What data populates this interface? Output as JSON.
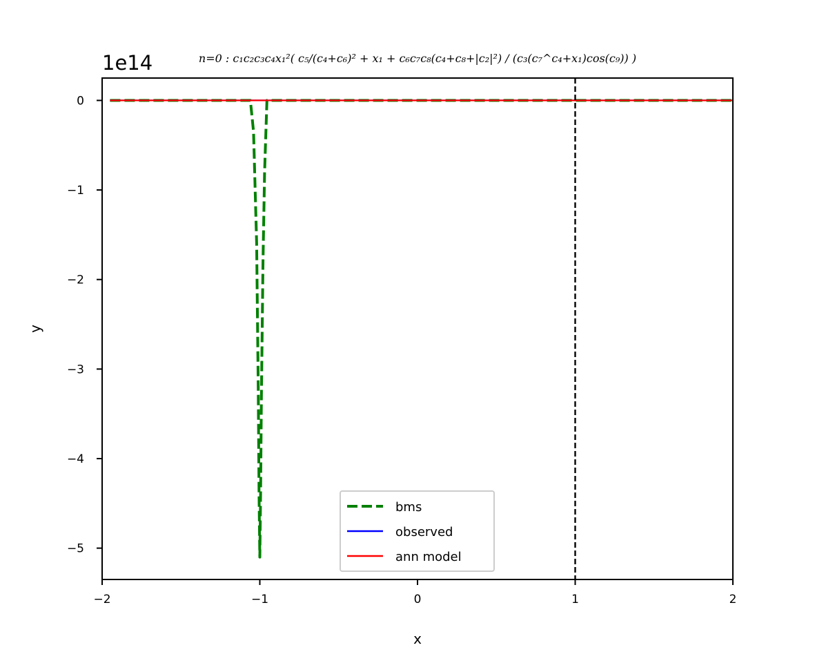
{
  "chart_data": {
    "type": "line",
    "title": "n=0 : c₁c₂c₃c₄x₁²( c₅/(c₄+c₆)² + x₁ + c₆c₇c₈(c₄+c₈+|c₂|²) / (c₃(c₇^c₄+x₁)cos(c₉)) )",
    "xlabel": "x",
    "ylabel": "y",
    "y_offset_text": "1e14",
    "xlim": [
      -2,
      2
    ],
    "ylim": [
      -5.35,
      0.25
    ],
    "xticks": [
      -2,
      -1,
      0,
      1,
      2
    ],
    "xtick_labels": [
      "−2",
      "−1",
      "0",
      "1",
      "2"
    ],
    "yticks": [
      0,
      -1,
      -2,
      -3,
      -4,
      -5
    ],
    "ytick_labels": [
      "0",
      "−1",
      "−2",
      "−3",
      "−4",
      "−5"
    ],
    "grid": false,
    "legend_position": "lower center",
    "vline_x": 1,
    "series": [
      {
        "name": "bms",
        "color": "#008000",
        "style": "dashed",
        "x": [
          -1.95,
          -1.5,
          -1.2,
          -1.06,
          -1.04,
          -1.02,
          -1.01,
          -1.005,
          -1.0,
          -0.995,
          -0.99,
          -0.98,
          -0.97,
          -0.955,
          -0.8,
          -0.5,
          0,
          0.5,
          1,
          1.5,
          2
        ],
        "y": [
          0,
          0,
          0,
          0,
          -0.35,
          -1.6,
          -3.2,
          -4.4,
          -5.1,
          -4.4,
          -3.3,
          -1.8,
          -0.8,
          0,
          0,
          0,
          0,
          0,
          0,
          0,
          0
        ]
      },
      {
        "name": "observed",
        "color": "#0000ff",
        "style": "solid",
        "x": [
          -1.95,
          2
        ],
        "y": [
          0,
          0
        ]
      },
      {
        "name": "ann model",
        "color": "#ff0000",
        "style": "solid",
        "x": [
          -1.95,
          2
        ],
        "y": [
          0,
          0
        ]
      }
    ]
  }
}
